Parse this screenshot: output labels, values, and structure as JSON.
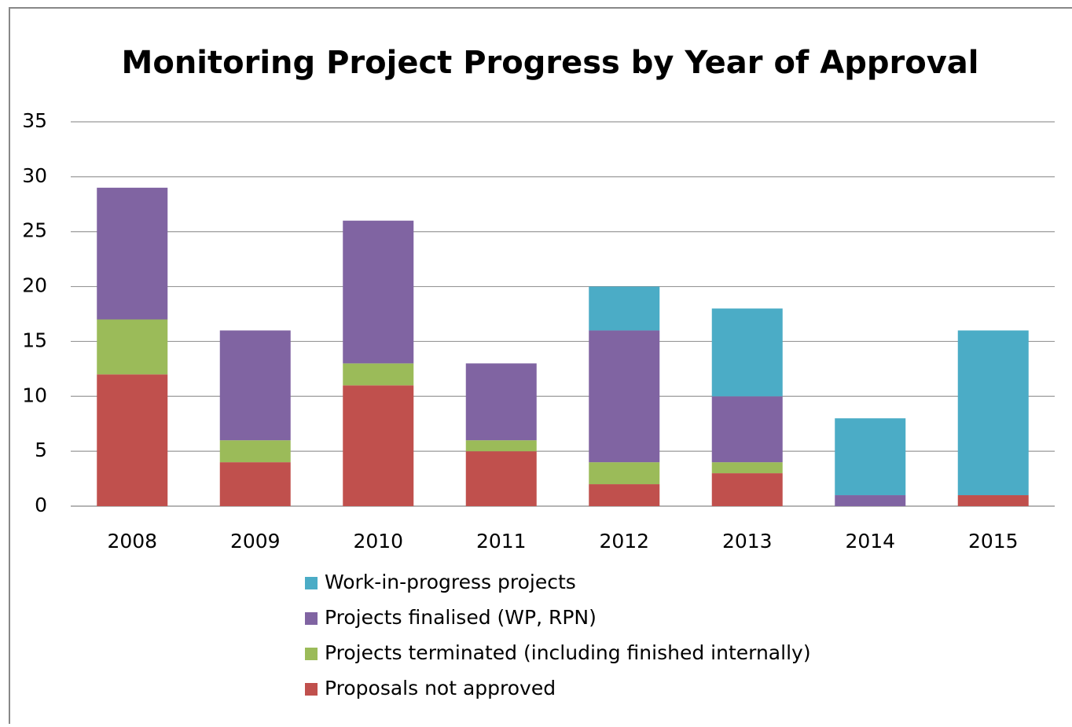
{
  "chart_data": {
    "type": "bar",
    "stacked": true,
    "title": "Monitoring Project Progress by Year of Approval",
    "categories": [
      "2008",
      "2009",
      "2010",
      "2011",
      "2012",
      "2013",
      "2014",
      "2015"
    ],
    "series": [
      {
        "name": "Work-in-progress projects",
        "color": "#4bacc6",
        "values": [
          0,
          0,
          0,
          0,
          4,
          8,
          7,
          15
        ]
      },
      {
        "name": "Projects finalised (WP, RPN)",
        "color": "#8064a2",
        "values": [
          12,
          10,
          13,
          7,
          12,
          6,
          1,
          0
        ]
      },
      {
        "name": "Projects terminated (including finished internally)",
        "color": "#9bbb59",
        "values": [
          5,
          2,
          2,
          1,
          2,
          1,
          0,
          0
        ]
      },
      {
        "name": "Proposals not approved",
        "color": "#c0504d",
        "values": [
          12,
          4,
          11,
          5,
          2,
          3,
          0,
          1
        ]
      }
    ],
    "ylim": [
      0,
      35
    ],
    "yticks": [
      0,
      5,
      10,
      15,
      20,
      25,
      30,
      35
    ],
    "grid": true,
    "legend": "bottom"
  }
}
